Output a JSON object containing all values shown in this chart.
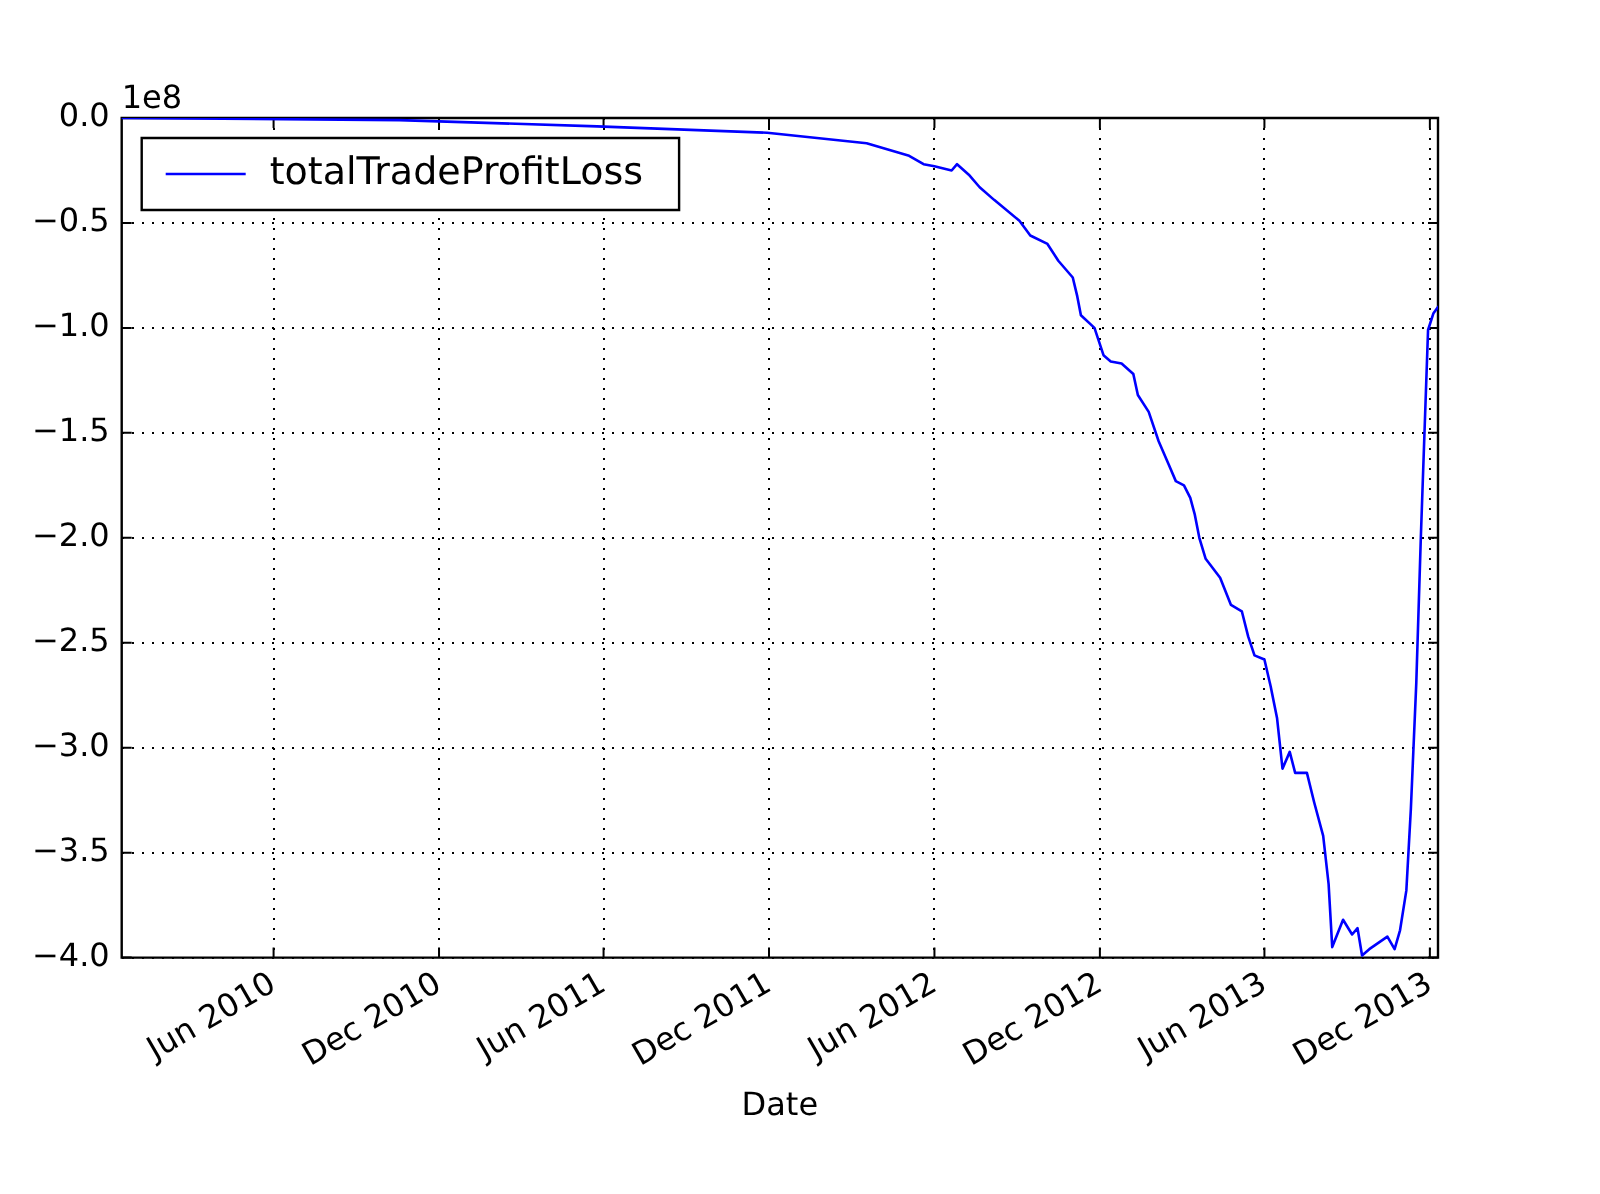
{
  "chart_data": {
    "type": "line",
    "xlabel": "Date",
    "annotations": [
      "1e8"
    ],
    "legend": "top left",
    "grid": true,
    "line_style": "solid",
    "marker": "none",
    "xlim": [
      "2009-12-15",
      "2013-12-10"
    ],
    "xticks": [
      {
        "value": "2010-06-01",
        "label": "Jun 2010"
      },
      {
        "value": "2010-12-01",
        "label": "Dec 2010"
      },
      {
        "value": "2011-06-01",
        "label": "Jun 2011"
      },
      {
        "value": "2011-12-01",
        "label": "Dec 2011"
      },
      {
        "value": "2012-06-01",
        "label": "Jun 2012"
      },
      {
        "value": "2012-12-01",
        "label": "Dec 2012"
      },
      {
        "value": "2013-06-01",
        "label": "Jun 2013"
      },
      {
        "value": "2013-12-01",
        "label": "Dec 2013"
      }
    ],
    "ylim": [
      -4.0,
      0.0
    ],
    "yticks": [
      {
        "value": 0,
        "label": "0.0"
      },
      {
        "value": -0.5,
        "label": "−0.5"
      },
      {
        "value": -1.0,
        "label": "−1.0"
      },
      {
        "value": -1.5,
        "label": "−1.5"
      },
      {
        "value": -2.0,
        "label": "−2.0"
      },
      {
        "value": -2.5,
        "label": "−2.5"
      },
      {
        "value": -3.0,
        "label": "−3.0"
      },
      {
        "value": -3.5,
        "label": "−3.5"
      },
      {
        "value": -4.0,
        "label": "−4.0"
      }
    ],
    "series": [
      {
        "name": "totalTradeProfitLoss",
        "color": "#0000ff",
        "x": [
          "2009-12-15",
          "2010-10-18",
          "2011-05-25",
          "2011-11-29",
          "2012-03-18",
          "2012-05-04",
          "2012-05-20",
          "2012-06-01",
          "2012-06-20",
          "2012-06-26",
          "2012-07-09",
          "2012-07-21",
          "2012-08-06",
          "2012-09-03",
          "2012-09-15",
          "2012-10-04",
          "2012-10-16",
          "2012-11-01",
          "2012-11-06",
          "2012-11-10",
          "2012-11-25",
          "2012-12-05",
          "2012-12-13",
          "2012-12-25",
          "2013-01-07",
          "2013-01-12",
          "2013-01-24",
          "2013-02-04",
          "2013-02-15",
          "2013-02-23",
          "2013-03-04",
          "2013-03-11",
          "2013-03-16",
          "2013-03-21",
          "2013-03-28",
          "2013-04-13",
          "2013-04-25",
          "2013-05-07",
          "2013-05-14",
          "2013-05-21",
          "2013-06-01",
          "2013-06-08",
          "2013-06-15",
          "2013-06-21",
          "2013-06-29",
          "2013-07-05",
          "2013-07-18",
          "2013-07-26",
          "2013-08-05",
          "2013-08-11",
          "2013-08-15",
          "2013-08-27",
          "2013-09-06",
          "2013-09-12",
          "2013-09-17",
          "2013-09-25",
          "2013-10-15",
          "2013-10-23",
          "2013-10-29",
          "2013-11-05",
          "2013-11-10",
          "2013-11-16",
          "2013-11-21",
          "2013-11-29",
          "2013-12-05",
          "2013-12-10"
        ],
        "values": [
          0,
          -0.01,
          -0.04,
          -0.07,
          -0.12,
          -0.18,
          -0.22,
          -0.23,
          -0.25,
          -0.22,
          -0.27,
          -0.33,
          -0.39,
          -0.49,
          -0.56,
          -0.6,
          -0.68,
          -0.76,
          -0.85,
          -0.94,
          -1.0,
          -1.13,
          -1.16,
          -1.17,
          -1.22,
          -1.32,
          -1.4,
          -1.54,
          -1.65,
          -1.73,
          -1.75,
          -1.81,
          -1.89,
          -2.0,
          -2.1,
          -2.19,
          -2.32,
          -2.35,
          -2.47,
          -2.56,
          -2.58,
          -2.71,
          -2.86,
          -3.1,
          -3.02,
          -3.12,
          -3.12,
          -3.26,
          -3.42,
          -3.65,
          -3.95,
          -3.82,
          -3.89,
          -3.86,
          -3.99,
          -3.96,
          -3.9,
          -3.96,
          -3.87,
          -3.68,
          -3.29,
          -2.69,
          -2.0,
          -1.01,
          -0.93,
          -0.9
        ]
      }
    ]
  }
}
